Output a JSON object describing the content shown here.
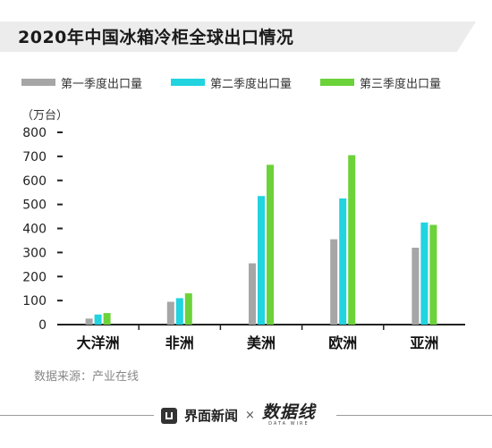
{
  "title": "2020年中国冰箱冷柜全球出口情况",
  "unit_label": "（万台）",
  "source": "数据来源：产业在线",
  "footer": {
    "brand": "界面新闻",
    "separator": "×",
    "partner": "数据线",
    "partner_sub": "DATA WIRE"
  },
  "colors": {
    "q1": "#a6a6a6",
    "q2": "#22d3e0",
    "q3": "#6cd23a",
    "title_bg": "#ececec"
  },
  "chart_data": {
    "type": "bar",
    "title": "2020年中国冰箱冷柜全球出口情况",
    "xlabel": "",
    "ylabel": "（万台）",
    "ylim": [
      0,
      800
    ],
    "yticks": [
      0,
      100,
      200,
      300,
      400,
      500,
      600,
      700,
      800
    ],
    "categories": [
      "大洋洲",
      "非洲",
      "美洲",
      "欧洲",
      "亚洲"
    ],
    "series": [
      {
        "name": "第一季度出口量",
        "values": [
          25,
          95,
          255,
          355,
          320
        ]
      },
      {
        "name": "第二季度出口量",
        "values": [
          42,
          110,
          535,
          525,
          425
        ]
      },
      {
        "name": "第三季度出口量",
        "values": [
          48,
          130,
          665,
          705,
          415
        ]
      }
    ],
    "legend": "top",
    "grid": false
  }
}
